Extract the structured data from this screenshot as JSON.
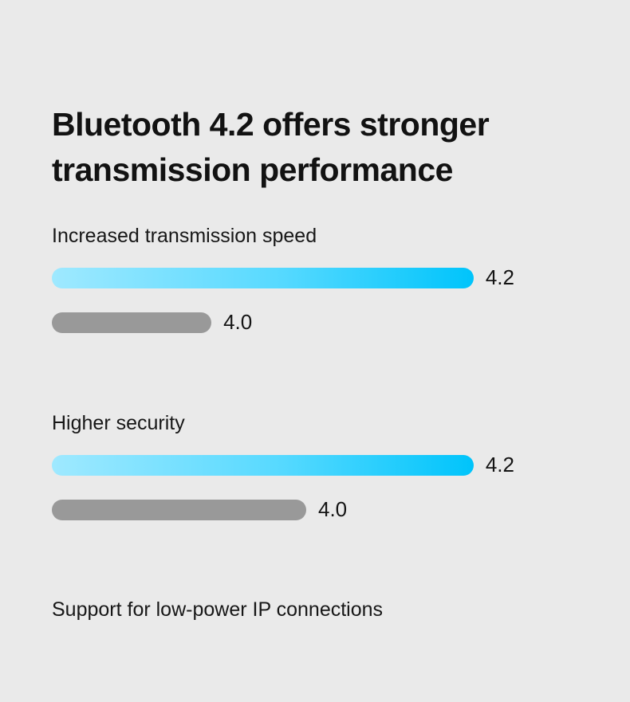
{
  "title": "Bluetooth 4.2 offers stronger transmission performance",
  "chart_data": {
    "type": "bar",
    "title": "Bluetooth 4.2 offers stronger transmission performance",
    "orientation": "horizontal",
    "legend": "none",
    "grid": false,
    "groups": [
      {
        "label": "Increased transmission speed",
        "bars": [
          {
            "name": "4.2",
            "length_pct": 100,
            "color_style": "blue-gradient"
          },
          {
            "name": "4.0",
            "length_pct": 34.5,
            "color_style": "gray"
          }
        ]
      },
      {
        "label": "Higher security",
        "bars": [
          {
            "name": "4.2",
            "length_pct": 100,
            "color_style": "blue-gradient"
          },
          {
            "name": "4.0",
            "length_pct": 55,
            "color_style": "gray"
          }
        ]
      }
    ],
    "footnote": "Support for low-power IP connections",
    "colors": {
      "background": "#EAEAEA",
      "text": "#141414",
      "bar_blue_start": "#9FE9FF",
      "bar_blue_end": "#00C4FB",
      "bar_gray": "#999999"
    }
  }
}
